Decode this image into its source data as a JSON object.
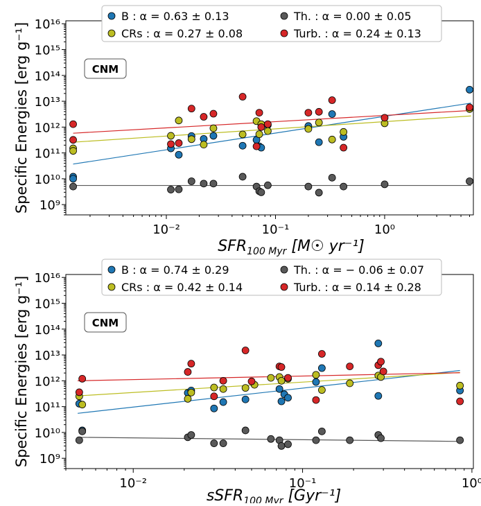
{
  "colors": {
    "B": "#1f77b4",
    "CRs": "#bcbd22",
    "Th": "#595959",
    "Turb": "#d62728"
  },
  "chart_data": [
    {
      "type": "scatter",
      "xscale": "log",
      "yscale": "log",
      "xlim": [
        0.0012,
        6.5
      ],
      "ylim": [
        400000000.0,
        1.3e+16
      ],
      "xlabel": "SFR₁₀₀ Myr [M☉ yr⁻¹]",
      "xlabel_parts": {
        "main": "SFR",
        "sub": "100 Myr",
        "units": " [M☉ yr⁻¹]"
      },
      "ylabel": "Specific Energies [erg g⁻¹]",
      "xticks": [
        {
          "v": 0.01,
          "label": "10⁻²"
        },
        {
          "v": 0.1,
          "label": "10⁻¹"
        },
        {
          "v": 1,
          "label": "10⁰"
        }
      ],
      "yticks": [
        {
          "v": 1000000000.0,
          "label": "10⁹"
        },
        {
          "v": 10000000000.0,
          "label": "10¹⁰"
        },
        {
          "v": 100000000000.0,
          "label": "10¹¹"
        },
        {
          "v": 1000000000000.0,
          "label": "10¹²"
        },
        {
          "v": 10000000000000.0,
          "label": "10¹³"
        },
        {
          "v": 100000000000000.0,
          "label": "10¹⁴"
        },
        {
          "v": 1000000000000000.0,
          "label": "10¹⁵"
        },
        {
          "v": 1e+16,
          "label": "10¹⁶"
        }
      ],
      "annotation": "CNM",
      "legend": [
        "B : α = 0.63 ± 0.13",
        "Th. : α = 0.00 ± 0.05",
        "CRs : α = 0.27 ± 0.08",
        "Turb. : α = 0.24 ± 0.13"
      ],
      "legend_position": "top",
      "series": [
        {
          "key": "B",
          "x": [
            0.0014,
            0.0014,
            0.011,
            0.013,
            0.017,
            0.022,
            0.027,
            0.05,
            0.067,
            0.071,
            0.074,
            0.085,
            0.2,
            0.25,
            0.33,
            0.42,
            6
          ],
          "y": [
            12000000000.0,
            10000000000.0,
            150000000000.0,
            85000000000.0,
            450000000000.0,
            350000000000.0,
            460000000000.0,
            190000000000.0,
            320000000000.0,
            180000000000.0,
            160000000000.0,
            1200000000000.0,
            1100000000000.0,
            260000000000.0,
            3200000000000.0,
            420000000000.0,
            28000000000000.0
          ],
          "fit": [
            [
              0.0014,
              37000000000.0
            ],
            [
              6.2,
              8500000000000.0
            ]
          ]
        },
        {
          "key": "Th",
          "x": [
            0.0014,
            0.011,
            0.013,
            0.017,
            0.022,
            0.027,
            0.05,
            0.067,
            0.071,
            0.074,
            0.085,
            0.2,
            0.25,
            0.33,
            0.42,
            1,
            6
          ],
          "y": [
            5000000000.0,
            3800000000.0,
            3900000000.0,
            8000000000.0,
            6500000000.0,
            6500000000.0,
            12000000000.0,
            5000000000.0,
            3300000000.0,
            3000000000.0,
            5600000000.0,
            5000000000.0,
            2900000000.0,
            11000000000.0,
            5000000000.0,
            6100000000.0,
            8000000000.0
          ],
          "fit": [
            [
              0.0014,
              5500000000.0
            ],
            [
              6.2,
              5500000000.0
            ]
          ]
        },
        {
          "key": "CRs",
          "x": [
            0.0014,
            0.0014,
            0.011,
            0.013,
            0.017,
            0.022,
            0.027,
            0.05,
            0.067,
            0.071,
            0.074,
            0.085,
            0.2,
            0.25,
            0.33,
            0.42,
            1,
            6
          ],
          "y": [
            150000000000.0,
            120000000000.0,
            460000000000.0,
            1800000000000.0,
            340000000000.0,
            210000000000.0,
            900000000000.0,
            520000000000.0,
            1700000000000.0,
            530000000000.0,
            1300000000000.0,
            700000000000.0,
            850000000000.0,
            1500000000000.0,
            330000000000.0,
            650000000000.0,
            1400000000000.0,
            5000000000000.0
          ],
          "fit": [
            [
              0.0014,
              260000000000.0
            ],
            [
              6.2,
              2700000000000.0
            ]
          ]
        },
        {
          "key": "Turb",
          "x": [
            0.0014,
            0.0014,
            0.011,
            0.013,
            0.017,
            0.022,
            0.027,
            0.05,
            0.067,
            0.071,
            0.074,
            0.085,
            0.2,
            0.25,
            0.33,
            0.42,
            1,
            6
          ],
          "y": [
            1300000000000.0,
            320000000000.0,
            220000000000.0,
            240000000000.0,
            5200000000000.0,
            2500000000000.0,
            3300000000000.0,
            15000000000000.0,
            180000000000.0,
            3600000000000.0,
            1000000000000.0,
            1300000000000.0,
            3600000000000.0,
            3900000000000.0,
            11000000000000.0,
            160000000000.0,
            2300000000000.0,
            5800000000000.0
          ],
          "fit": [
            [
              0.0014,
              580000000000.0
            ],
            [
              6.2,
              4400000000000.0
            ]
          ]
        }
      ]
    },
    {
      "type": "scatter",
      "xscale": "log",
      "yscale": "log",
      "xlim": [
        0.004,
        1.02
      ],
      "ylim": [
        400000000.0,
        1.3e+16
      ],
      "xlabel": "sSFR₁₀₀ Myr [Gyr⁻¹]",
      "xlabel_parts": {
        "main": "sSFR",
        "sub": "100 Myr",
        "units": " [Gyr⁻¹]"
      },
      "ylabel": "Specific Energies [erg g⁻¹]",
      "xticks": [
        {
          "v": 0.01,
          "label": "10⁻²"
        },
        {
          "v": 0.1,
          "label": "10⁻¹"
        },
        {
          "v": 1,
          "label": "10⁰"
        }
      ],
      "yticks": [
        {
          "v": 1000000000.0,
          "label": "10⁹"
        },
        {
          "v": 10000000000.0,
          "label": "10¹⁰"
        },
        {
          "v": 100000000000.0,
          "label": "10¹¹"
        },
        {
          "v": 1000000000000.0,
          "label": "10¹²"
        },
        {
          "v": 10000000000000.0,
          "label": "10¹³"
        },
        {
          "v": 100000000000000.0,
          "label": "10¹⁴"
        },
        {
          "v": 1000000000000000.0,
          "label": "10¹⁵"
        },
        {
          "v": 1e+16,
          "label": "10¹⁶"
        }
      ],
      "annotation": "CNM",
      "legend": [
        "B : α = 0.74 ± 0.29",
        "Th. : α = − 0.06 ± 0.07",
        "CRs : α = 0.42 ± 0.14",
        "Turb. : α = 0.14 ± 0.28"
      ],
      "legend_position": "top",
      "series": [
        {
          "key": "B",
          "x": [
            0.0048,
            0.005,
            0.021,
            0.022,
            0.03,
            0.034,
            0.046,
            0.073,
            0.075,
            0.078,
            0.082,
            0.12,
            0.13,
            0.28,
            0.28,
            0.85
          ],
          "y": [
            130000000000.0,
            12000000000.0,
            340000000000.0,
            420000000000.0,
            85000000000.0,
            150000000000.0,
            190000000000.0,
            480000000000.0,
            160000000000.0,
            300000000000.0,
            220000000000.0,
            900000000000.0,
            3100000000000.0,
            28000000000000.0,
            260000000000.0,
            420000000000.0
          ],
          "fit": [
            [
              0.0047,
              55000000000.0
            ],
            [
              0.85,
              2500000000000.0
            ]
          ]
        },
        {
          "key": "Th",
          "x": [
            0.0048,
            0.005,
            0.021,
            0.022,
            0.03,
            0.034,
            0.046,
            0.065,
            0.073,
            0.075,
            0.082,
            0.12,
            0.13,
            0.19,
            0.28,
            0.29,
            0.85
          ],
          "y": [
            5000000000.0,
            11000000000.0,
            6500000000.0,
            8000000000.0,
            3800000000.0,
            3800000000.0,
            12000000000.0,
            5600000000.0,
            5000000000.0,
            3000000000.0,
            3500000000.0,
            5000000000.0,
            11000000000.0,
            5000000000.0,
            8000000000.0,
            6000000000.0,
            5000000000.0
          ],
          "fit": [
            [
              0.0047,
              6500000000.0
            ],
            [
              0.85,
              4500000000.0
            ]
          ]
        },
        {
          "key": "CRs",
          "x": [
            0.0048,
            0.005,
            0.021,
            0.022,
            0.03,
            0.034,
            0.046,
            0.052,
            0.065,
            0.073,
            0.075,
            0.082,
            0.12,
            0.13,
            0.19,
            0.28,
            0.29,
            0.85
          ],
          "y": [
            250000000000.0,
            120000000000.0,
            200000000000.0,
            350000000000.0,
            550000000000.0,
            480000000000.0,
            530000000000.0,
            700000000000.0,
            1300000000000.0,
            1400000000000.0,
            1000000000000.0,
            1200000000000.0,
            1700000000000.0,
            440000000000.0,
            800000000000.0,
            1600000000000.0,
            1400000000000.0,
            650000000000.0
          ],
          "fit": [
            [
              0.0047,
              260000000000.0
            ],
            [
              0.85,
              2100000000000.0
            ]
          ]
        },
        {
          "key": "Turb",
          "x": [
            0.0048,
            0.005,
            0.021,
            0.022,
            0.03,
            0.034,
            0.046,
            0.05,
            0.073,
            0.075,
            0.082,
            0.12,
            0.13,
            0.19,
            0.28,
            0.29,
            0.3,
            0.85
          ],
          "y": [
            360000000000.0,
            1200000000000.0,
            2200000000000.0,
            4600000000000.0,
            250000000000.0,
            1000000000000.0,
            15000000000000.0,
            950000000000.0,
            3600000000000.0,
            3400000000000.0,
            1300000000000.0,
            180000000000.0,
            11000000000000.0,
            3600000000000.0,
            4000000000000.0,
            5500000000000.0,
            2300000000000.0,
            160000000000.0
          ],
          "fit": [
            [
              0.0047,
              1000000000000.0
            ],
            [
              0.85,
              2050000000000.0
            ]
          ]
        }
      ]
    }
  ]
}
